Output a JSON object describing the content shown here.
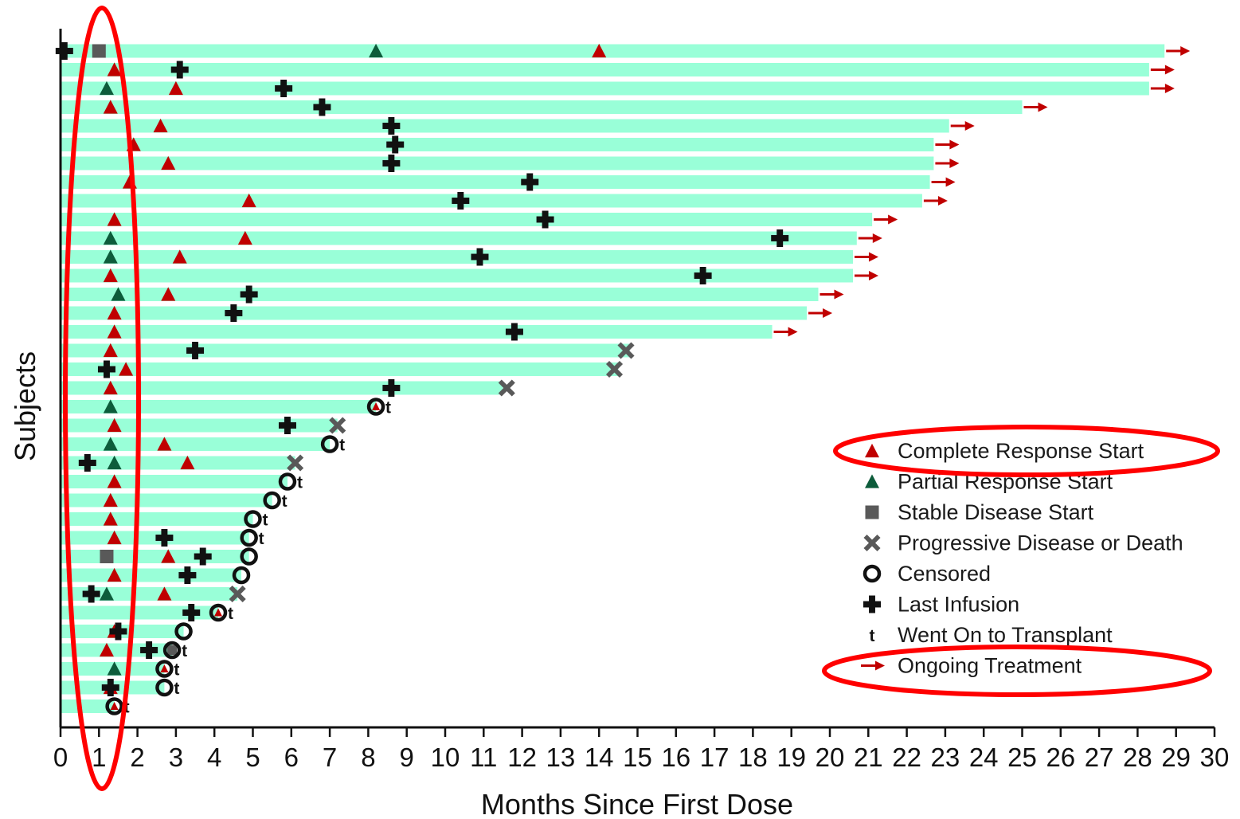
{
  "chart_data": {
    "type": "swimmer",
    "xlabel": "Months Since First Dose",
    "ylabel": "Subjects",
    "xlim": [
      0,
      30
    ],
    "xticks": [
      0,
      1,
      2,
      3,
      4,
      5,
      6,
      7,
      8,
      9,
      10,
      11,
      12,
      13,
      14,
      15,
      16,
      17,
      18,
      19,
      20,
      21,
      22,
      23,
      24,
      25,
      26,
      27,
      28,
      29,
      30
    ],
    "grid": false,
    "legend_position": "bottom-right",
    "colors": {
      "bar": "#99ffd8",
      "complete_response": "#c00000",
      "partial_response": "#0d5c3b",
      "stable_disease": "#595959",
      "progressive_disease": "#595959",
      "censored": "#111111",
      "last_infusion": "#111111",
      "ongoing_arrow": "#c00000",
      "highlight": "#ff0000"
    },
    "legend": [
      {
        "key": "cr",
        "label": "Complete Response Start"
      },
      {
        "key": "pr",
        "label": "Partial Response Start"
      },
      {
        "key": "sd",
        "label": "Stable Disease Start"
      },
      {
        "key": "pd",
        "label": "Progressive Disease or Death"
      },
      {
        "key": "cens",
        "label": "Censored"
      },
      {
        "key": "inf",
        "label": "Last Infusion"
      },
      {
        "key": "t",
        "label": "Went On to Transplant",
        "symbol": "t"
      },
      {
        "key": "ongoing",
        "label": "Ongoing Treatment"
      }
    ],
    "subjects": [
      {
        "end": 28.7,
        "ongoing": true,
        "inf": 0.1,
        "sd": 1.0,
        "pr": 8.2,
        "cr": 14.0
      },
      {
        "end": 28.3,
        "ongoing": true,
        "inf": 3.1,
        "cr": 1.4
      },
      {
        "end": 28.3,
        "ongoing": true,
        "inf": 5.8,
        "pr": 1.2,
        "cr": 3.0
      },
      {
        "end": 25.0,
        "ongoing": true,
        "inf": 6.8,
        "cr": 1.3
      },
      {
        "end": 23.1,
        "ongoing": true,
        "inf": 8.6,
        "cr": 2.6
      },
      {
        "end": 22.7,
        "ongoing": true,
        "inf": 8.7,
        "cr": 1.9
      },
      {
        "end": 22.7,
        "ongoing": true,
        "inf": 8.6,
        "cr": 2.8
      },
      {
        "end": 22.6,
        "ongoing": true,
        "inf": 12.2,
        "cr": 1.8
      },
      {
        "end": 22.4,
        "ongoing": true,
        "inf": 10.4,
        "cr": 4.9
      },
      {
        "end": 21.1,
        "ongoing": true,
        "inf": 12.6,
        "cr": 1.4
      },
      {
        "end": 20.7,
        "ongoing": true,
        "inf": 18.7,
        "pr": 1.3,
        "cr": 4.8
      },
      {
        "end": 20.6,
        "ongoing": true,
        "inf": 10.9,
        "pr": 1.3,
        "cr": 3.1
      },
      {
        "end": 20.6,
        "ongoing": true,
        "inf": 16.7,
        "cr": 1.3
      },
      {
        "end": 19.7,
        "ongoing": true,
        "inf": 4.9,
        "pr": 1.5,
        "cr": 2.8
      },
      {
        "end": 19.4,
        "ongoing": true,
        "inf": 4.5,
        "cr": 1.4
      },
      {
        "end": 18.5,
        "ongoing": true,
        "inf": 11.8,
        "cr": 1.4
      },
      {
        "end": 14.8,
        "ongoing": false,
        "inf": 3.5,
        "cr": 1.3,
        "pd": 14.7
      },
      {
        "end": 14.5,
        "ongoing": false,
        "inf": 1.2,
        "cr": 1.7,
        "pd": 14.4
      },
      {
        "end": 11.5,
        "ongoing": false,
        "inf": 8.6,
        "cr": 1.3,
        "pd": 11.6
      },
      {
        "end": 8.2,
        "ongoing": false,
        "pr": 1.3,
        "cens": 8.2,
        "t": true,
        "inner_cr": true
      },
      {
        "end": 7.2,
        "ongoing": false,
        "inf": 5.9,
        "cr": 1.4,
        "pd": 7.2
      },
      {
        "end": 7.0,
        "ongoing": false,
        "pr": 1.3,
        "cr": 2.7,
        "cens": 7.0,
        "t": true
      },
      {
        "end": 6.1,
        "ongoing": false,
        "inf": 0.7,
        "pr": 1.4,
        "cr": 3.3,
        "pd": 6.1
      },
      {
        "end": 5.9,
        "ongoing": false,
        "cr": 1.4,
        "cens": 5.9,
        "t": true
      },
      {
        "end": 5.5,
        "ongoing": false,
        "cr": 1.3,
        "cens": 5.5,
        "t": true
      },
      {
        "end": 5.0,
        "ongoing": false,
        "cr": 1.3,
        "cens": 5.0,
        "t": true
      },
      {
        "end": 4.9,
        "ongoing": false,
        "inf": 2.7,
        "cr": 1.4,
        "cens": 4.9,
        "t": true
      },
      {
        "end": 4.9,
        "ongoing": false,
        "inf": 3.7,
        "sd": 1.2,
        "cr": 2.8,
        "cens": 4.9
      },
      {
        "end": 4.7,
        "ongoing": false,
        "inf": 3.3,
        "cr": 1.4,
        "cens": 4.7
      },
      {
        "end": 4.6,
        "ongoing": false,
        "inf": 0.8,
        "pr": 1.2,
        "cr": 2.7,
        "pd": 4.6
      },
      {
        "end": 4.1,
        "ongoing": false,
        "inf": 3.4,
        "cens": 4.1,
        "t": true,
        "inner_cr": true
      },
      {
        "end": 3.2,
        "ongoing": false,
        "inf": 1.5,
        "cr": 1.4,
        "cens": 3.2
      },
      {
        "end": 2.9,
        "ongoing": false,
        "inf": 2.3,
        "cr": 1.2,
        "cens": 2.9,
        "t": true,
        "inner_sd": true
      },
      {
        "end": 2.7,
        "ongoing": false,
        "pr": 1.4,
        "cens": 2.7,
        "t": true,
        "inner_cr": true
      },
      {
        "end": 2.7,
        "ongoing": false,
        "inf": 1.3,
        "cr": 1.3,
        "cens": 2.7,
        "t": true
      },
      {
        "end": 1.4,
        "ongoing": false,
        "cens": 1.4,
        "t": true,
        "inner_cr": true
      }
    ]
  }
}
